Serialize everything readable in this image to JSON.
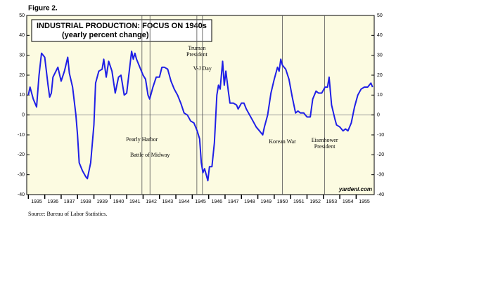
{
  "figure_label": "Figure 2.",
  "source": "Source: Bureau of Labor Statistics.",
  "chart_data": {
    "type": "line",
    "title": "INDUSTRIAL PRODUCTION: FOCUS ON 1940s",
    "subtitle": "(yearly percent change)",
    "credit": "yardeni.com",
    "xlim": [
      1934.9,
      1956.1
    ],
    "xticks": [
      1935,
      1936,
      1937,
      1938,
      1939,
      1940,
      1941,
      1942,
      1943,
      1944,
      1945,
      1946,
      1947,
      1948,
      1949,
      1950,
      1951,
      1952,
      1953,
      1954,
      1955
    ],
    "ylim": [
      -40,
      50
    ],
    "yticks": [
      -40,
      -30,
      -20,
      -10,
      0,
      10,
      20,
      30,
      40,
      50
    ],
    "y2lim": [
      -40,
      50
    ],
    "y2ticks": [
      -40,
      -30,
      -20,
      -10,
      0,
      10,
      20,
      30,
      40,
      50
    ],
    "zero_line": true,
    "grid": false,
    "series": [
      {
        "color": "#1f1fe6",
        "x": [
          1935.0,
          1935.1,
          1935.3,
          1935.5,
          1935.65,
          1935.8,
          1936.0,
          1936.2,
          1936.3,
          1936.4,
          1936.5,
          1936.8,
          1937.0,
          1937.2,
          1937.4,
          1937.5,
          1937.7,
          1937.9,
          1938.0,
          1938.1,
          1938.3,
          1938.5,
          1938.6,
          1938.8,
          1939.0,
          1939.1,
          1939.3,
          1939.5,
          1939.6,
          1939.75,
          1939.9,
          1940.1,
          1940.3,
          1940.5,
          1940.65,
          1940.85,
          1941.0,
          1941.3,
          1941.4,
          1941.5,
          1941.6,
          1941.8,
          1942.0,
          1942.15,
          1942.3,
          1942.4,
          1942.6,
          1942.8,
          1943.0,
          1943.15,
          1943.3,
          1943.5,
          1943.7,
          1943.9,
          1944.1,
          1944.3,
          1944.5,
          1944.7,
          1944.9,
          1945.1,
          1945.3,
          1945.45,
          1945.55,
          1945.65,
          1945.75,
          1945.85,
          1945.95,
          1946.05,
          1946.2,
          1946.35,
          1946.5,
          1946.6,
          1946.7,
          1946.85,
          1946.95,
          1947.05,
          1947.2,
          1947.3,
          1947.5,
          1947.7,
          1947.8,
          1948.0,
          1948.15,
          1948.3,
          1948.5,
          1948.7,
          1948.9,
          1949.1,
          1949.3,
          1949.4,
          1949.6,
          1949.8,
          1950.0,
          1950.2,
          1950.3,
          1950.4,
          1950.5,
          1950.7,
          1950.9,
          1951.1,
          1951.3,
          1951.45,
          1951.6,
          1951.8,
          1952.0,
          1952.2,
          1952.35,
          1952.55,
          1952.7,
          1952.9,
          1953.1,
          1953.25,
          1953.35,
          1953.5,
          1953.7,
          1953.8,
          1954.0,
          1954.2,
          1954.35,
          1954.5,
          1954.7,
          1954.9,
          1955.1,
          1955.3,
          1955.5,
          1955.7,
          1955.9,
          1956.0
        ],
        "values": [
          10,
          14,
          8,
          4,
          20,
          31,
          29,
          15,
          9,
          11,
          19,
          24,
          17,
          22,
          29,
          21,
          14,
          0,
          -10,
          -24,
          -28,
          -31,
          -32,
          -24,
          -5,
          16,
          22,
          23,
          28,
          19,
          27,
          22,
          11,
          19,
          20,
          10,
          11,
          32,
          28,
          31,
          28,
          24,
          20,
          18,
          10,
          8,
          14,
          19,
          19,
          24,
          24,
          23,
          17,
          13,
          10,
          6,
          1,
          0,
          -3,
          -4,
          -8,
          -12,
          -24,
          -29,
          -27,
          -30,
          -33,
          -26,
          -26,
          -14,
          10,
          15,
          13,
          27,
          15,
          22,
          12,
          6,
          6,
          5,
          3,
          6,
          6,
          3,
          0,
          -3,
          -6,
          -8,
          -10,
          -6,
          0,
          11,
          18,
          24,
          22,
          28,
          25,
          23,
          18,
          9,
          1,
          2,
          1,
          1,
          -1,
          -1,
          8,
          12,
          11,
          11,
          14,
          14,
          19,
          5,
          -2,
          -5,
          -6,
          -8,
          -7,
          -8,
          -4,
          4,
          10,
          13,
          14,
          14,
          16,
          14
        ]
      }
    ],
    "annotations": [
      {
        "x": 1941.93,
        "lines": [
          "Pearly Harbor"
        ]
      },
      {
        "x": 1942.42,
        "lines": [
          "Battle of Midway"
        ]
      },
      {
        "x": 1945.28,
        "lines": [
          "Truman",
          "President"
        ]
      },
      {
        "x": 1945.62,
        "lines": [
          "V-J Day"
        ]
      },
      {
        "x": 1950.5,
        "lines": [
          "Korean War"
        ]
      },
      {
        "x": 1953.08,
        "lines": [
          "Eisenhower",
          "President"
        ]
      }
    ]
  }
}
